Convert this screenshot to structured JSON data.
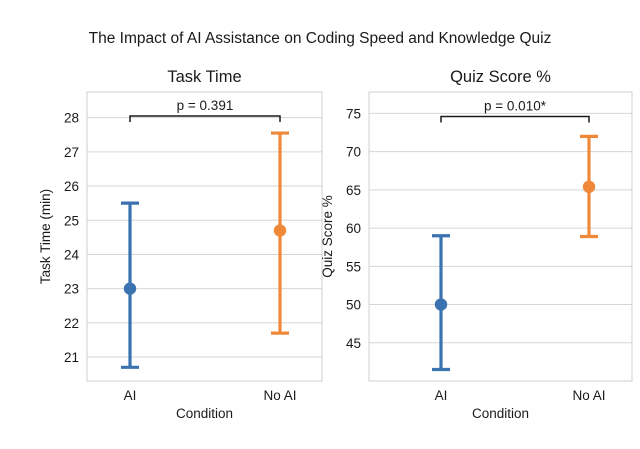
{
  "figure": {
    "title": "The Impact of AI Assistance on Coding Speed and Knowledge Quiz"
  },
  "chart_data": [
    {
      "type": "errorbar",
      "title": "Task Time",
      "xlabel": "Condition",
      "ylabel": "Task Time (min)",
      "categories": [
        "AI",
        "No AI"
      ],
      "colors": [
        "#3b72b0",
        "#f0883a"
      ],
      "means": [
        23.0,
        24.7
      ],
      "ci_low": [
        20.7,
        21.7
      ],
      "ci_high": [
        25.5,
        27.55
      ],
      "ylim": [
        20.3,
        28.75
      ],
      "yticks": [
        21,
        22,
        23,
        24,
        25,
        26,
        27,
        28
      ],
      "grid": true,
      "annotation": {
        "text": "p = 0.391",
        "y": 28.05
      }
    },
    {
      "type": "errorbar",
      "title": "Quiz Score %",
      "xlabel": "Condition",
      "ylabel": "Quiz Score %",
      "categories": [
        "AI",
        "No AI"
      ],
      "colors": [
        "#3b72b0",
        "#f0883a"
      ],
      "means": [
        50.0,
        65.4
      ],
      "ci_low": [
        41.5,
        58.9
      ],
      "ci_high": [
        59.0,
        72.0
      ],
      "ylim": [
        40.0,
        77.8
      ],
      "yticks": [
        45,
        50,
        55,
        60,
        65,
        70,
        75
      ],
      "grid": true,
      "annotation": {
        "text": "p = 0.010*",
        "y": 74.6
      }
    }
  ]
}
